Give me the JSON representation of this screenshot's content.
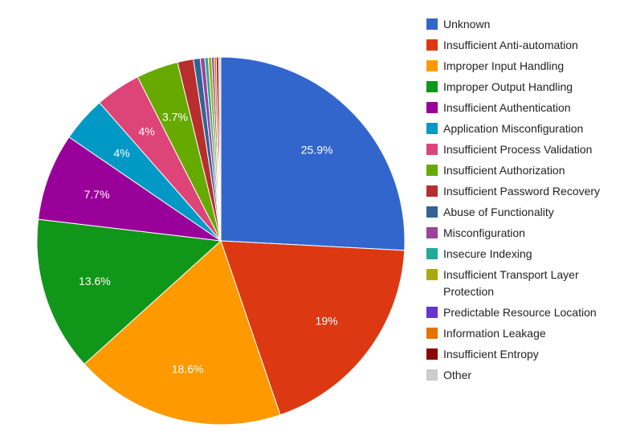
{
  "chart_data": {
    "type": "pie",
    "title": "",
    "legend_position": "right",
    "slices": [
      {
        "label": "Unknown",
        "value": 25.9,
        "display": "25.9%",
        "color": "#3366cc"
      },
      {
        "label": "Insufficient Anti-automation",
        "value": 19.0,
        "display": "19%",
        "color": "#dc3912"
      },
      {
        "label": "Improper Input Handling",
        "value": 18.6,
        "display": "18.6%",
        "color": "#ff9900"
      },
      {
        "label": "Improper Output Handling",
        "value": 13.6,
        "display": "13.6%",
        "color": "#109618"
      },
      {
        "label": "Insufficient Authentication",
        "value": 7.7,
        "display": "7.7%",
        "color": "#990099"
      },
      {
        "label": "Application Misconfiguration",
        "value": 4.0,
        "display": "4%",
        "color": "#0099c6"
      },
      {
        "label": "Insufficient Process Validation",
        "value": 4.0,
        "display": "4%",
        "color": "#dd4477"
      },
      {
        "label": "Insufficient Authorization",
        "value": 3.7,
        "display": "3.7%",
        "color": "#66aa00"
      },
      {
        "label": "Insufficient Password Recovery",
        "value": 1.4,
        "display": "",
        "color": "#b82e2e"
      },
      {
        "label": "Abuse of Functionality",
        "value": 0.6,
        "display": "",
        "color": "#316395"
      },
      {
        "label": "Misconfiguration",
        "value": 0.4,
        "display": "",
        "color": "#994499"
      },
      {
        "label": "Insecure Indexing",
        "value": 0.3,
        "display": "",
        "color": "#22aa99"
      },
      {
        "label": "Insufficient Transport Layer Protection",
        "value": 0.3,
        "display": "",
        "color": "#aaaa11"
      },
      {
        "label": "Predictable Resource Location",
        "value": 0.2,
        "display": "",
        "color": "#6633cc"
      },
      {
        "label": "Information Leakage",
        "value": 0.2,
        "display": "",
        "color": "#e67300"
      },
      {
        "label": "Insufficient Entropy",
        "value": 0.2,
        "display": "",
        "color": "#8b0707"
      },
      {
        "label": "Other",
        "value": 0.2,
        "display": "",
        "color": "#cccccc"
      }
    ]
  }
}
